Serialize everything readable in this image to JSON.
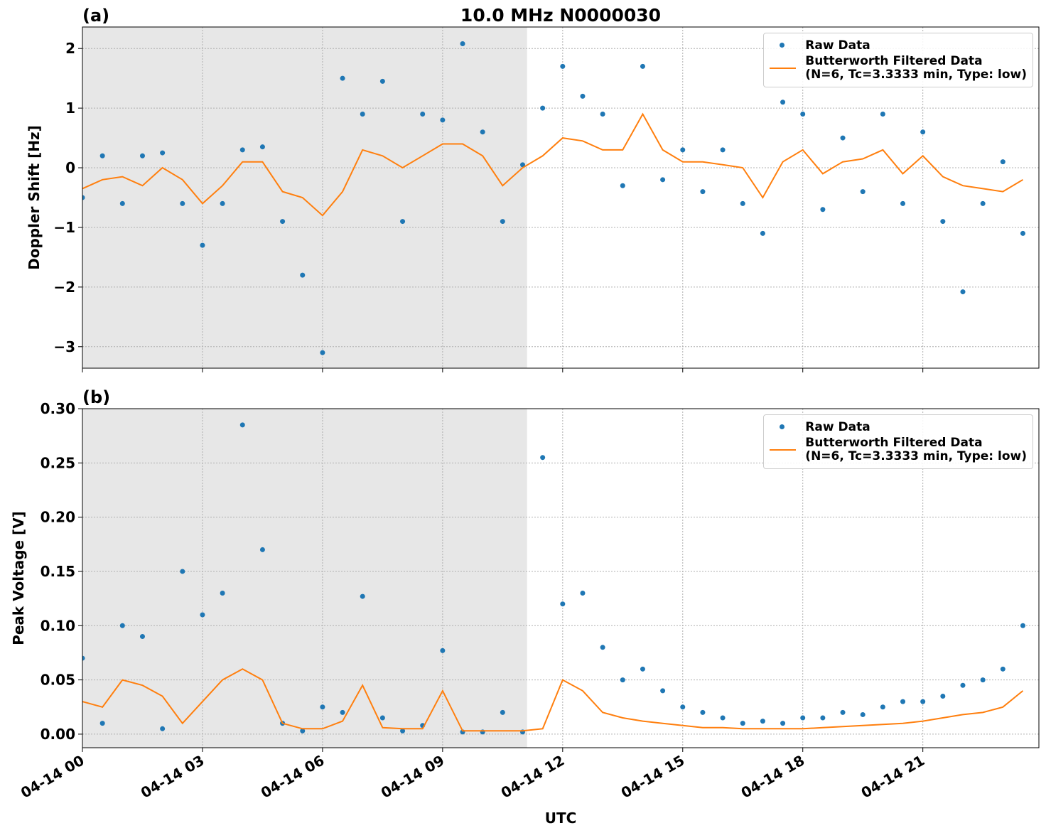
{
  "chart_data": [
    {
      "type": "scatter-line",
      "title": "10.0 MHz N0000030",
      "panel_label": "(a)",
      "y_label": "Doppler Shift [Hz]",
      "x": [
        0,
        0.5,
        1,
        1.5,
        2,
        2.5,
        3,
        3.5,
        4,
        4.5,
        5,
        5.5,
        6,
        6.5,
        7,
        7.5,
        8,
        8.5,
        9,
        9.5,
        10,
        10.5,
        11,
        11.5,
        12,
        12.5,
        13,
        13.5,
        14,
        14.5,
        15,
        15.5,
        16,
        16.5,
        17,
        17.5,
        18,
        18.5,
        19,
        19.5,
        20,
        20.5,
        21,
        21.5,
        22,
        22.5,
        23,
        23.5
      ],
      "series": [
        {
          "name": "Raw Data",
          "color": "#1f77b4",
          "style": "points",
          "values": [
            -0.5,
            0.2,
            -0.6,
            0.2,
            0.25,
            -0.6,
            -1.3,
            -0.6,
            0.3,
            0.35,
            -0.9,
            -1.8,
            -3.1,
            1.5,
            0.9,
            1.45,
            -0.9,
            0.9,
            0.8,
            2.08,
            0.6,
            -0.9,
            0.05,
            1.0,
            1.7,
            1.2,
            0.9,
            -0.3,
            1.7,
            -0.2,
            0.3,
            -0.4,
            0.3,
            -0.6,
            -1.1,
            1.1,
            0.9,
            -0.7,
            0.5,
            -0.4,
            0.9,
            -0.6,
            0.6,
            -0.9,
            -2.08,
            -0.6,
            0.1,
            -1.1
          ]
        },
        {
          "name": "Butterworth Filtered Data\n(N=6, Tc=3.3333 min, Type: low)",
          "color": "#ff7f0e",
          "style": "line",
          "values": [
            -0.35,
            -0.2,
            -0.15,
            -0.3,
            0.0,
            -0.2,
            -0.6,
            -0.3,
            0.1,
            0.1,
            -0.4,
            -0.5,
            -0.8,
            -0.4,
            0.3,
            0.2,
            0.0,
            0.2,
            0.4,
            0.4,
            0.2,
            -0.3,
            0.0,
            0.2,
            0.5,
            0.45,
            0.3,
            0.3,
            0.9,
            0.3,
            0.1,
            0.1,
            0.05,
            0.0,
            -0.5,
            0.1,
            0.3,
            -0.1,
            0.1,
            0.15,
            0.3,
            -0.1,
            0.2,
            -0.15,
            -0.3,
            -0.35,
            -0.4,
            -0.2
          ]
        }
      ],
      "xlim": [
        0,
        23.9
      ],
      "xticks": [
        0,
        3,
        6,
        9,
        12,
        15,
        18,
        21
      ],
      "ylim": [
        -3.36,
        2.36
      ],
      "yticks": [
        {
          "value": -3,
          "label": "−3"
        },
        {
          "value": -2,
          "label": "−2"
        },
        {
          "value": -1,
          "label": "−1"
        },
        0,
        1,
        2
      ],
      "grid": true,
      "shade_x": [
        0,
        11.11
      ],
      "legend": "upper right"
    },
    {
      "type": "scatter-line",
      "panel_label": "(b)",
      "y_label": "Peak Voltage [V]",
      "x_label": "UTC",
      "x": [
        0,
        0.5,
        1,
        1.5,
        2,
        2.5,
        3,
        3.5,
        4,
        4.5,
        5,
        5.5,
        6,
        6.5,
        7,
        7.5,
        8,
        8.5,
        9,
        9.5,
        10,
        10.5,
        11,
        11.5,
        12,
        12.5,
        13,
        13.5,
        14,
        14.5,
        15,
        15.5,
        16,
        16.5,
        17,
        17.5,
        18,
        18.5,
        19,
        19.5,
        20,
        20.5,
        21,
        21.5,
        22,
        22.5,
        23,
        23.5
      ],
      "series": [
        {
          "name": "Raw Data",
          "color": "#1f77b4",
          "style": "points",
          "values": [
            0.07,
            0.01,
            0.1,
            0.09,
            0.005,
            0.15,
            0.11,
            0.13,
            0.285,
            0.17,
            0.01,
            0.003,
            0.025,
            0.02,
            0.127,
            0.015,
            0.003,
            0.008,
            0.077,
            0.002,
            0.002,
            0.02,
            0.002,
            0.255,
            0.12,
            0.13,
            0.08,
            0.05,
            0.06,
            0.04,
            0.025,
            0.02,
            0.015,
            0.01,
            0.012,
            0.01,
            0.015,
            0.015,
            0.02,
            0.018,
            0.025,
            0.03,
            0.03,
            0.035,
            0.045,
            0.05,
            0.06,
            0.1
          ]
        },
        {
          "name": "Butterworth Filtered Data\n(N=6, Tc=3.3333 min, Type: low)",
          "color": "#ff7f0e",
          "style": "line",
          "values": [
            0.03,
            0.025,
            0.05,
            0.045,
            0.035,
            0.01,
            0.03,
            0.05,
            0.06,
            0.05,
            0.01,
            0.005,
            0.005,
            0.012,
            0.045,
            0.006,
            0.005,
            0.005,
            0.04,
            0.003,
            0.003,
            0.003,
            0.003,
            0.005,
            0.05,
            0.04,
            0.02,
            0.015,
            0.012,
            0.01,
            0.008,
            0.006,
            0.006,
            0.005,
            0.005,
            0.005,
            0.005,
            0.006,
            0.007,
            0.008,
            0.009,
            0.01,
            0.012,
            0.015,
            0.018,
            0.02,
            0.025,
            0.04
          ]
        }
      ],
      "xlim": [
        0,
        23.9
      ],
      "xticks": [
        {
          "value": 0,
          "label": "04-14 00"
        },
        {
          "value": 3,
          "label": "04-14 03"
        },
        {
          "value": 6,
          "label": "04-14 06"
        },
        {
          "value": 9,
          "label": "04-14 09"
        },
        {
          "value": 12,
          "label": "04-14 12"
        },
        {
          "value": 15,
          "label": "04-14 15"
        },
        {
          "value": 18,
          "label": "04-14 18"
        },
        {
          "value": 21,
          "label": "04-14 21"
        }
      ],
      "ylim": [
        -0.0125,
        0.3
      ],
      "yticks": [
        {
          "value": 0,
          "label": "0.00"
        },
        0.05,
        {
          "value": 0.1,
          "label": "0.10"
        },
        0.15,
        {
          "value": 0.2,
          "label": "0.20"
        },
        0.25,
        {
          "value": 0.3,
          "label": "0.30"
        }
      ],
      "grid": true,
      "shade_x": [
        0,
        11.11
      ],
      "legend": "upper right"
    }
  ]
}
